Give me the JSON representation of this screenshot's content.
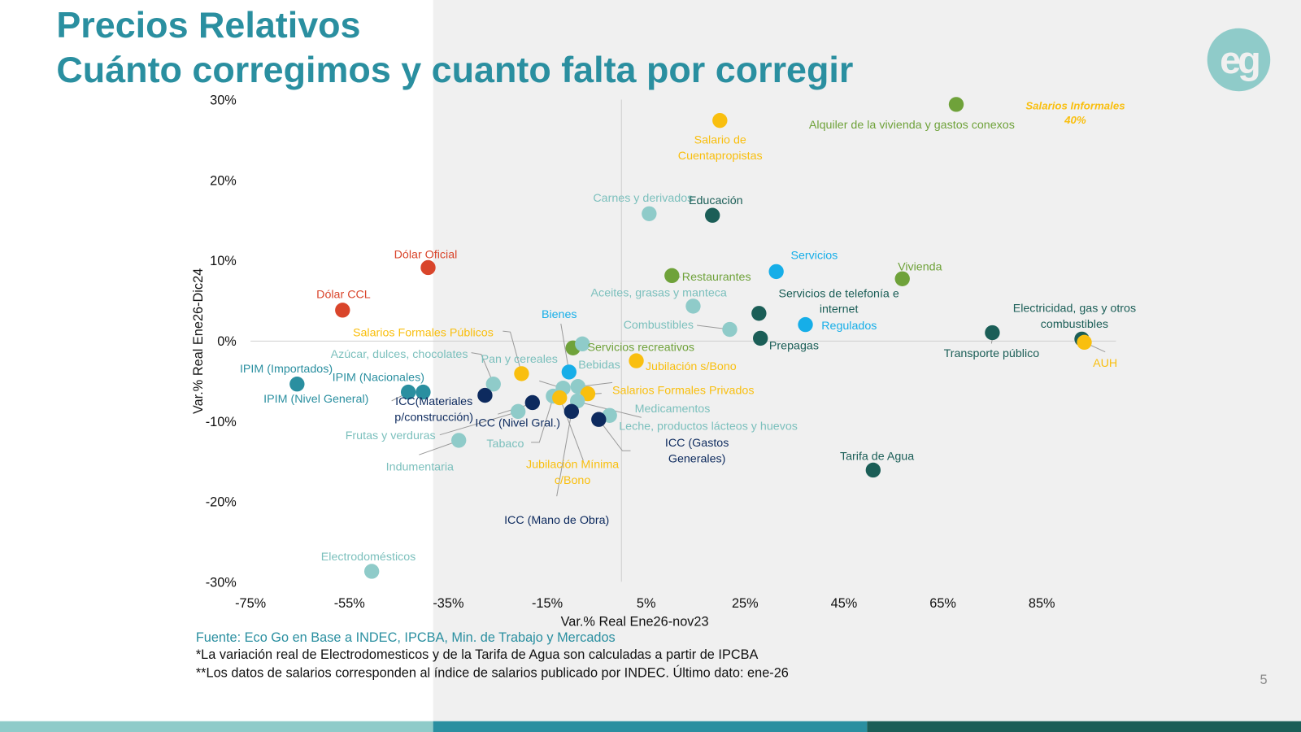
{
  "slide": {
    "title_line1": "Precios Relativos",
    "title_line2": "Cuánto corregimos y cuanto falta por corregir",
    "logo_text": "eg",
    "source": "Fuente: Eco Go en Base a INDEC, IPCBA, Min. de Trabajo y Mercados",
    "note1": "*La variación real de Electrodomesticos y de la Tarifa de Agua son calculadas a partir de IPCBA",
    "note2": "**Los datos de salarios corresponden al índice de salarios publicado por INDEC. Último dato: ene-26",
    "page_number": "5",
    "colors": {
      "title": "#2a8fa0",
      "band1": "#8fcbc9",
      "band2": "#2a8fa0",
      "band3": "#1b5e57"
    }
  },
  "chart_data": {
    "type": "scatter",
    "xlabel": "Var.% Real Ene26-nov23",
    "ylabel": "Var.% Real  Ene26-Dic24",
    "xlim": [
      -75,
      100
    ],
    "ylim": [
      -30,
      30
    ],
    "xticks": [
      "-75%",
      "-55%",
      "-35%",
      "-15%",
      "5%",
      "25%",
      "45%",
      "65%",
      "85%"
    ],
    "xtick_values": [
      -75,
      -55,
      -35,
      -15,
      5,
      25,
      45,
      65,
      85
    ],
    "yticks": [
      "30%",
      "20%",
      "10%",
      "0%",
      "-10%",
      "-20%",
      "-30%"
    ],
    "ytick_values": [
      30,
      20,
      10,
      0,
      -10,
      -20,
      -30
    ],
    "grid": false,
    "colors": {
      "salarios": "#f9bf0f",
      "vivienda": "#6fa23a",
      "servicios": "#1b5e57",
      "alimentos": "#8fcbc9",
      "bienes_regulados": "#16aee8",
      "dolar": "#d9452b",
      "ipim": "#2a8fa0",
      "icc": "#0d2a5e"
    },
    "annotation": {
      "lines": [
        "Salarios Informales",
        "40%"
      ],
      "color": "#f9bf0f"
    },
    "points": [
      {
        "lines": [
          "Salario de",
          "Cuentapropistas"
        ],
        "x": 19.9,
        "y": 27.4,
        "color": "#f9bf0f"
      },
      {
        "lines": [
          "Alquiler de la vivienda y gastos conexos"
        ],
        "x": 67.7,
        "y": 29.4,
        "color": "#6fa23a"
      },
      {
        "lines": [
          "Carnes y derivados"
        ],
        "x": 5.6,
        "y": 15.8,
        "color": "#8fcbc9"
      },
      {
        "lines": [
          "Educación"
        ],
        "x": 18.4,
        "y": 15.6,
        "color": "#1b5e57"
      },
      {
        "lines": [
          "Dólar Oficial"
        ],
        "x": -39.1,
        "y": 9.1,
        "color": "#d9452b"
      },
      {
        "lines": [
          "Dólar CCL"
        ],
        "x": -56.4,
        "y": 3.8,
        "color": "#d9452b"
      },
      {
        "lines": [
          "Restaurantes"
        ],
        "x": 10.2,
        "y": 8.1,
        "color": "#6fa23a"
      },
      {
        "lines": [
          "Servicios"
        ],
        "x": 31.3,
        "y": 8.6,
        "color": "#16aee8"
      },
      {
        "lines": [
          "Vivienda"
        ],
        "x": 56.8,
        "y": 7.7,
        "color": "#6fa23a"
      },
      {
        "lines": [
          "Aceites, grasas y manteca"
        ],
        "x": 14.5,
        "y": 4.3,
        "color": "#8fcbc9"
      },
      {
        "lines": [
          "Servicios  de telefonía e",
          "internet"
        ],
        "x": 27.8,
        "y": 3.4,
        "color": "#1b5e57"
      },
      {
        "lines": [
          "Regulados"
        ],
        "x": 37.2,
        "y": 2.0,
        "color": "#16aee8"
      },
      {
        "lines": [
          "Combustibles"
        ],
        "x": 21.9,
        "y": 1.4,
        "color": "#8fcbc9"
      },
      {
        "lines": [
          "Prepagas"
        ],
        "x": 28.1,
        "y": 0.3,
        "color": "#1b5e57"
      },
      {
        "lines": [
          "Transporte público"
        ],
        "x": 75.0,
        "y": 1.0,
        "color": "#1b5e57"
      },
      {
        "lines": [
          "Electricidad, gas y otros",
          "combustibles"
        ],
        "x": 93.1,
        "y": 0.2,
        "color": "#1b5e57"
      },
      {
        "lines": [
          "AUH"
        ],
        "x": 93.6,
        "y": -0.2,
        "color": "#f9bf0f"
      },
      {
        "lines": [
          "Servicios recreativos"
        ],
        "x": -9.8,
        "y": -0.9,
        "color": "#6fa23a"
      },
      {
        "lines": [
          "Bienes"
        ],
        "x": -10.6,
        "y": -3.9,
        "color": "#16aee8"
      },
      {
        "lines": [
          "Salarios Formales Públicos"
        ],
        "x": -20.2,
        "y": -4.1,
        "color": "#f9bf0f"
      },
      {
        "lines": [
          "Azúcar, dulces, chocolates"
        ],
        "x": -25.9,
        "y": -5.4,
        "color": "#8fcbc9"
      },
      {
        "lines": [
          "Pan y cereales"
        ],
        "x": -11.8,
        "y": -5.9,
        "color": "#8fcbc9"
      },
      {
        "lines": [
          "Bebidas"
        ],
        "x": -8.8,
        "y": -5.7,
        "color": "#8fcbc9"
      },
      {
        "lines": [
          "Jubilación s/Bono"
        ],
        "x": 3.0,
        "y": -2.5,
        "color": "#f9bf0f"
      },
      {
        "lines": [
          "IPIM (Importados)"
        ],
        "x": -65.6,
        "y": -5.4,
        "color": "#2a8fa0"
      },
      {
        "lines": [
          "IPIM (Nacionales)"
        ],
        "x": -43.1,
        "y": -6.4,
        "color": "#2a8fa0"
      },
      {
        "lines": [
          "Salarios Formales Privados"
        ],
        "x": -6.8,
        "y": -6.6,
        "color": "#f9bf0f"
      },
      {
        "lines": [
          "IPIM (Nivel General)"
        ],
        "x": -40.1,
        "y": -6.4,
        "color": "#2a8fa0"
      },
      {
        "lines": [
          "ICC(Materiales",
          "p/construcción)"
        ],
        "x": -27.6,
        "y": -6.8,
        "color": "#0d2a5e"
      },
      {
        "lines": [
          "Medicamentos"
        ],
        "x": -8.9,
        "y": -7.5,
        "color": "#8fcbc9"
      },
      {
        "lines": [
          "ICC (Nivel Gral.)"
        ],
        "x": -18.0,
        "y": -7.7,
        "color": "#0d2a5e"
      },
      {
        "lines": [
          "Leche, productos lácteos y huevos"
        ],
        "x": -2.4,
        "y": -9.3,
        "color": "#8fcbc9"
      },
      {
        "lines": [
          "Frutas y verduras"
        ],
        "x": -20.9,
        "y": -8.8,
        "color": "#8fcbc9"
      },
      {
        "lines": [
          "Tabaco"
        ],
        "x": -13.8,
        "y": -6.9,
        "color": "#8fcbc9"
      },
      {
        "lines": [
          "ICC (Gastos",
          "Generales)"
        ],
        "x": -4.6,
        "y": -9.8,
        "color": "#0d2a5e"
      },
      {
        "lines": [
          "Indumentaria"
        ],
        "x": -32.9,
        "y": -12.4,
        "color": "#8fcbc9"
      },
      {
        "lines": [
          "Jubilación Mínima",
          "c/Bono"
        ],
        "x": -12.5,
        "y": -7.1,
        "color": "#f9bf0f"
      },
      {
        "lines": [
          "Tarifa de Agua"
        ],
        "x": 50.9,
        "y": -16.1,
        "color": "#1b5e57"
      },
      {
        "lines": [
          "ICC (Mano de Obra)"
        ],
        "x": -10.1,
        "y": -8.8,
        "color": "#0d2a5e"
      },
      {
        "lines": [
          "Electrodomésticos"
        ],
        "x": -50.5,
        "y": -28.7,
        "color": "#8fcbc9"
      },
      {
        "lines": [
          ""
        ],
        "x": -7.9,
        "y": -0.4,
        "color": "#8fcbc9"
      }
    ]
  }
}
